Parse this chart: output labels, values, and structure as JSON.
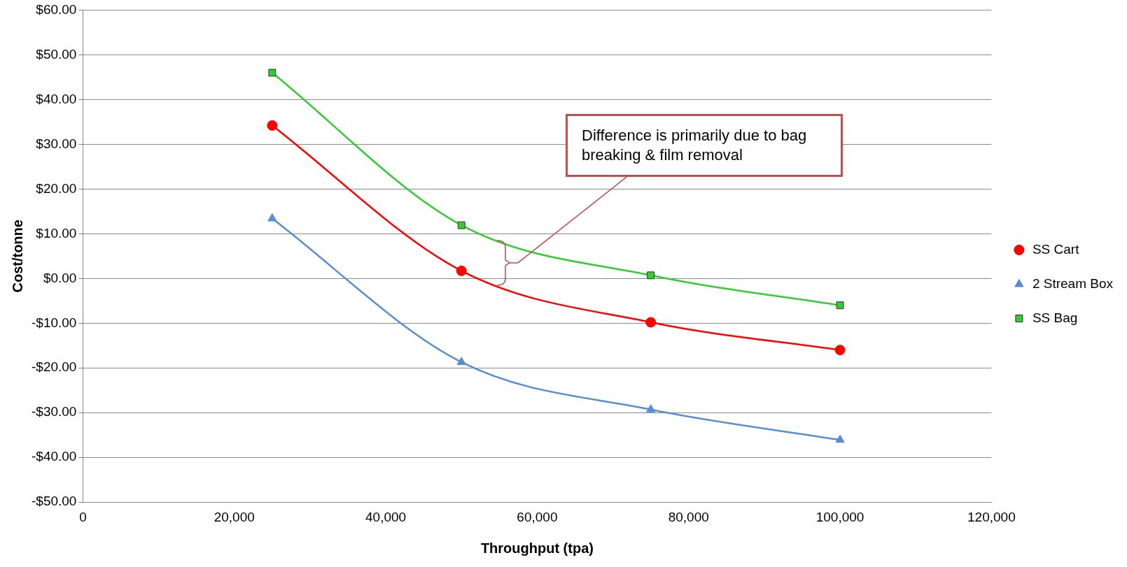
{
  "chart_data": {
    "type": "line",
    "xlabel": "Throughput (tpa)",
    "ylabel": "Cost/tonne",
    "x": [
      25000,
      50000,
      75000,
      100000
    ],
    "series": [
      {
        "name": "SS Cart",
        "color": "#ff0000",
        "marker": "circle",
        "values": [
          34.2,
          1.7,
          -9.8,
          -16.0
        ]
      },
      {
        "name": "2 Stream Box",
        "color": "#558ed5",
        "marker": "triangle",
        "values": [
          13.4,
          -18.7,
          -29.3,
          -36.1
        ]
      },
      {
        "name": "SS Bag",
        "color": "#33cc33",
        "marker": "square",
        "values": [
          46.0,
          11.9,
          0.7,
          -6.0
        ]
      }
    ],
    "xlim": [
      0,
      120000
    ],
    "xticks": [
      0,
      {
        "value": 20000,
        "label": "20,000"
      },
      {
        "value": 40000,
        "label": "40,000"
      },
      {
        "value": 60000,
        "label": "60,000"
      },
      {
        "value": 80000,
        "label": "80,000"
      },
      {
        "value": 100000,
        "label": "100,000"
      },
      {
        "value": 120000,
        "label": "120,000"
      }
    ],
    "ylim": [
      -50,
      60
    ],
    "yticks": [
      {
        "value": -50,
        "label": "-$50.00"
      },
      {
        "value": -40,
        "label": "-$40.00"
      },
      {
        "value": -30,
        "label": "-$30.00"
      },
      {
        "value": -20,
        "label": "-$20.00"
      },
      {
        "value": -10,
        "label": "-$10.00"
      },
      {
        "value": 0,
        "label": "$0.00"
      },
      {
        "value": 10,
        "label": "$10.00"
      },
      {
        "value": 20,
        "label": "$20.00"
      },
      {
        "value": 30,
        "label": "$30.00"
      },
      {
        "value": 40,
        "label": "$40.00"
      },
      {
        "value": 50,
        "label": "$50.00"
      },
      {
        "value": 60,
        "label": "$60.00"
      }
    ],
    "grid": "y",
    "legend": "right",
    "annotations": [
      "Difference is primarily due to bag breaking & film removal"
    ]
  }
}
